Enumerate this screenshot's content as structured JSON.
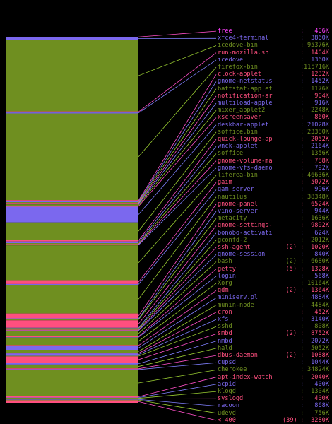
{
  "colors": {
    "green": "#6f8f20",
    "magenta": "#ff40ff",
    "blue": "#7b68ee",
    "pink": "#ff4f7f",
    "separator_lines": [
      "#ff4fc8",
      "#8080ff",
      "#9acd32"
    ]
  },
  "processes": [
    {
      "name": "free",
      "count": "",
      "mem": "406K",
      "color": "magenta"
    },
    {
      "name": "xfce4-terminal",
      "count": "",
      "mem": "3860K",
      "color": "blue"
    },
    {
      "name": "icedove-bin",
      "count": "",
      "mem": "95376K",
      "color": "green"
    },
    {
      "name": "run-mozilla.sh",
      "count": "",
      "mem": "1404K",
      "color": "pink"
    },
    {
      "name": "icedove",
      "count": "",
      "mem": "1360K",
      "color": "blue"
    },
    {
      "name": "firefox-bin",
      "count": "",
      "mem": "115716K",
      "color": "green"
    },
    {
      "name": "clock-applet",
      "count": "",
      "mem": "1232K",
      "color": "pink"
    },
    {
      "name": "gnome-netstatus",
      "count": "",
      "mem": "1452K",
      "color": "blue"
    },
    {
      "name": "battstat-applet",
      "count": "",
      "mem": "1176K",
      "color": "green"
    },
    {
      "name": "notification-ar",
      "count": "",
      "mem": "904K",
      "color": "pink"
    },
    {
      "name": "multiload-apple",
      "count": "",
      "mem": "916K",
      "color": "blue"
    },
    {
      "name": "mixer_applet2",
      "count": "",
      "mem": "2248K",
      "color": "green"
    },
    {
      "name": "xscreensaver",
      "count": "",
      "mem": "860K",
      "color": "pink"
    },
    {
      "name": "deskbar-applet",
      "count": "",
      "mem": "21028K",
      "color": "blue"
    },
    {
      "name": "soffice.bin",
      "count": "",
      "mem": "23380K",
      "color": "green"
    },
    {
      "name": "quick-lounge-ap",
      "count": "",
      "mem": "2052K",
      "color": "pink"
    },
    {
      "name": "wnck-applet",
      "count": "",
      "mem": "2164K",
      "color": "blue"
    },
    {
      "name": "soffice",
      "count": "",
      "mem": "1356K",
      "color": "green"
    },
    {
      "name": "gnome-volume-ma",
      "count": "",
      "mem": "788K",
      "color": "pink"
    },
    {
      "name": "gnome-vfs-daemo",
      "count": "",
      "mem": "792K",
      "color": "blue"
    },
    {
      "name": "liferea-bin",
      "count": "",
      "mem": "46636K",
      "color": "green"
    },
    {
      "name": "gaim",
      "count": "",
      "mem": "5072K",
      "color": "pink"
    },
    {
      "name": "gam_server",
      "count": "",
      "mem": "996K",
      "color": "blue"
    },
    {
      "name": "nautilus",
      "count": "",
      "mem": "38348K",
      "color": "green"
    },
    {
      "name": "gnome-panel",
      "count": "",
      "mem": "6524K",
      "color": "pink"
    },
    {
      "name": "vino-server",
      "count": "",
      "mem": "944K",
      "color": "blue"
    },
    {
      "name": "metacity",
      "count": "",
      "mem": "1636K",
      "color": "green"
    },
    {
      "name": "gnome-settings-",
      "count": "",
      "mem": "9892K",
      "color": "pink"
    },
    {
      "name": "bonobo-activati",
      "count": "",
      "mem": "624K",
      "color": "blue"
    },
    {
      "name": "gconfd-2",
      "count": "",
      "mem": "2012K",
      "color": "green"
    },
    {
      "name": "ssh-agent",
      "count": "(2)",
      "mem": "1020K",
      "color": "pink"
    },
    {
      "name": "gnome-session",
      "count": "",
      "mem": "840K",
      "color": "blue"
    },
    {
      "name": "bash",
      "count": "(2)",
      "mem": "6680K",
      "color": "green"
    },
    {
      "name": "getty",
      "count": "(5)",
      "mem": "1328K",
      "color": "pink"
    },
    {
      "name": "login",
      "count": "",
      "mem": "568K",
      "color": "blue"
    },
    {
      "name": "Xorg",
      "count": "",
      "mem": "10164K",
      "color": "green"
    },
    {
      "name": "gdm",
      "count": "(2)",
      "mem": "1364K",
      "color": "pink"
    },
    {
      "name": "miniserv.pl",
      "count": "",
      "mem": "4884K",
      "color": "blue"
    },
    {
      "name": "munin-node",
      "count": "",
      "mem": "4484K",
      "color": "green"
    },
    {
      "name": "cron",
      "count": "",
      "mem": "452K",
      "color": "pink"
    },
    {
      "name": "xfs",
      "count": "",
      "mem": "3140K",
      "color": "blue"
    },
    {
      "name": "sshd",
      "count": "",
      "mem": "808K",
      "color": "green"
    },
    {
      "name": "smbd",
      "count": "(2)",
      "mem": "8752K",
      "color": "pink"
    },
    {
      "name": "nmbd",
      "count": "",
      "mem": "2072K",
      "color": "blue"
    },
    {
      "name": "hald",
      "count": "",
      "mem": "5052K",
      "color": "green"
    },
    {
      "name": "dbus-daemon",
      "count": "(2)",
      "mem": "1088K",
      "color": "pink"
    },
    {
      "name": "cupsd",
      "count": "",
      "mem": "1044K",
      "color": "blue"
    },
    {
      "name": "cherokee",
      "count": "",
      "mem": "34824K",
      "color": "green"
    },
    {
      "name": "apt-index-watch",
      "count": "",
      "mem": "2040K",
      "color": "pink"
    },
    {
      "name": "acpid",
      "count": "",
      "mem": "400K",
      "color": "blue"
    },
    {
      "name": "klogd",
      "count": "",
      "mem": "1304K",
      "color": "green"
    },
    {
      "name": "syslogd",
      "count": "",
      "mem": "400K",
      "color": "pink"
    },
    {
      "name": "racoon",
      "count": "",
      "mem": "868K",
      "color": "blue"
    },
    {
      "name": "udevd",
      "count": "",
      "mem": "756K",
      "color": "green"
    },
    {
      "name": "< 400",
      "count": "(39)",
      "mem": "3280K",
      "color": "pink"
    }
  ]
}
